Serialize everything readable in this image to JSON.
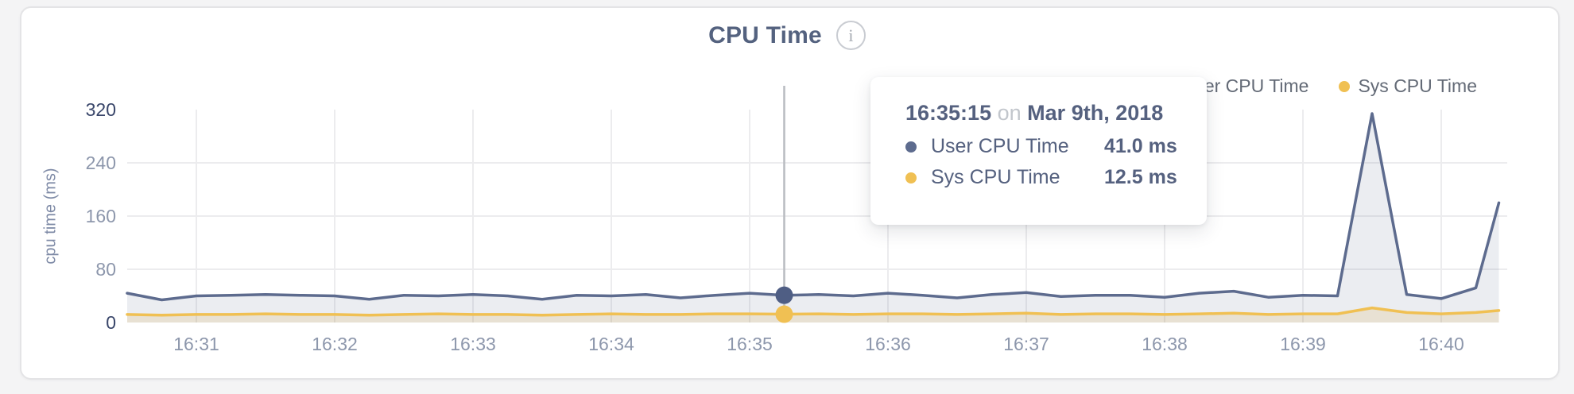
{
  "header": {
    "title": "CPU Time",
    "info_icon_glyph": "i"
  },
  "tooltip": {
    "time": "16:35:15",
    "on_word": "on",
    "date": "Mar 9th, 2018",
    "rows": [
      {
        "label": "User CPU Time",
        "value": "41.0 ms",
        "color": "#4f5e84"
      },
      {
        "label": "Sys CPU Time",
        "value": "12.5 ms",
        "color": "#f0c053"
      }
    ]
  },
  "colors": {
    "user_line": "#5d6b8e",
    "sys_line": "#f0c053",
    "grid": "#ececee",
    "crosshair": "#b9bcc1",
    "page_background": "#f4f4f5",
    "card_background": "#ffffff"
  },
  "chart_data": {
    "type": "area",
    "title": "CPU Time",
    "xlabel": "",
    "ylabel": "cpu time (ms)",
    "ylim": [
      0,
      320
    ],
    "yticks": [
      0,
      80,
      160,
      240,
      320
    ],
    "xticks": [
      "16:31",
      "16:32",
      "16:33",
      "16:34",
      "16:35",
      "16:36",
      "16:37",
      "16:38",
      "16:39",
      "16:40"
    ],
    "grid": true,
    "legend_position": "top-right",
    "x_seconds_after_1630": [
      30,
      45,
      60,
      75,
      90,
      105,
      120,
      135,
      150,
      165,
      180,
      195,
      210,
      225,
      240,
      255,
      270,
      285,
      300,
      315,
      330,
      345,
      360,
      375,
      390,
      405,
      420,
      435,
      450,
      465,
      480,
      495,
      510,
      525,
      540,
      555,
      570,
      585,
      600,
      615,
      625
    ],
    "series": [
      {
        "name": "User CPU Time",
        "color": "#5d6b8e",
        "fill": "rgba(93,107,142,0.12)",
        "values": [
          44,
          34,
          40,
          41,
          42,
          41,
          40,
          35,
          41,
          40,
          42,
          40,
          35,
          41,
          40,
          42,
          37,
          41,
          44,
          41,
          42,
          40,
          44,
          41,
          37,
          42,
          45,
          39,
          41,
          41,
          38,
          44,
          47,
          38,
          41,
          40,
          314,
          42,
          36,
          52,
          180
        ]
      },
      {
        "name": "Sys CPU Time",
        "color": "#f0c053",
        "fill": "rgba(240,192,83,0.20)",
        "values": [
          12,
          11,
          12,
          12,
          13,
          12,
          12,
          11,
          12,
          13,
          12,
          12,
          11,
          12,
          13,
          12,
          12,
          13,
          13,
          12.5,
          13,
          12,
          13,
          13,
          12,
          13,
          14,
          12,
          13,
          13,
          12,
          13,
          14,
          12,
          13,
          13,
          22,
          15,
          13,
          15,
          18
        ]
      }
    ],
    "crosshair": {
      "x_second": 315,
      "time_label": "16:35:15",
      "date_label": "Mar 9th, 2018",
      "values": {
        "User CPU Time": 41.0,
        "Sys CPU Time": 12.5
      }
    }
  }
}
